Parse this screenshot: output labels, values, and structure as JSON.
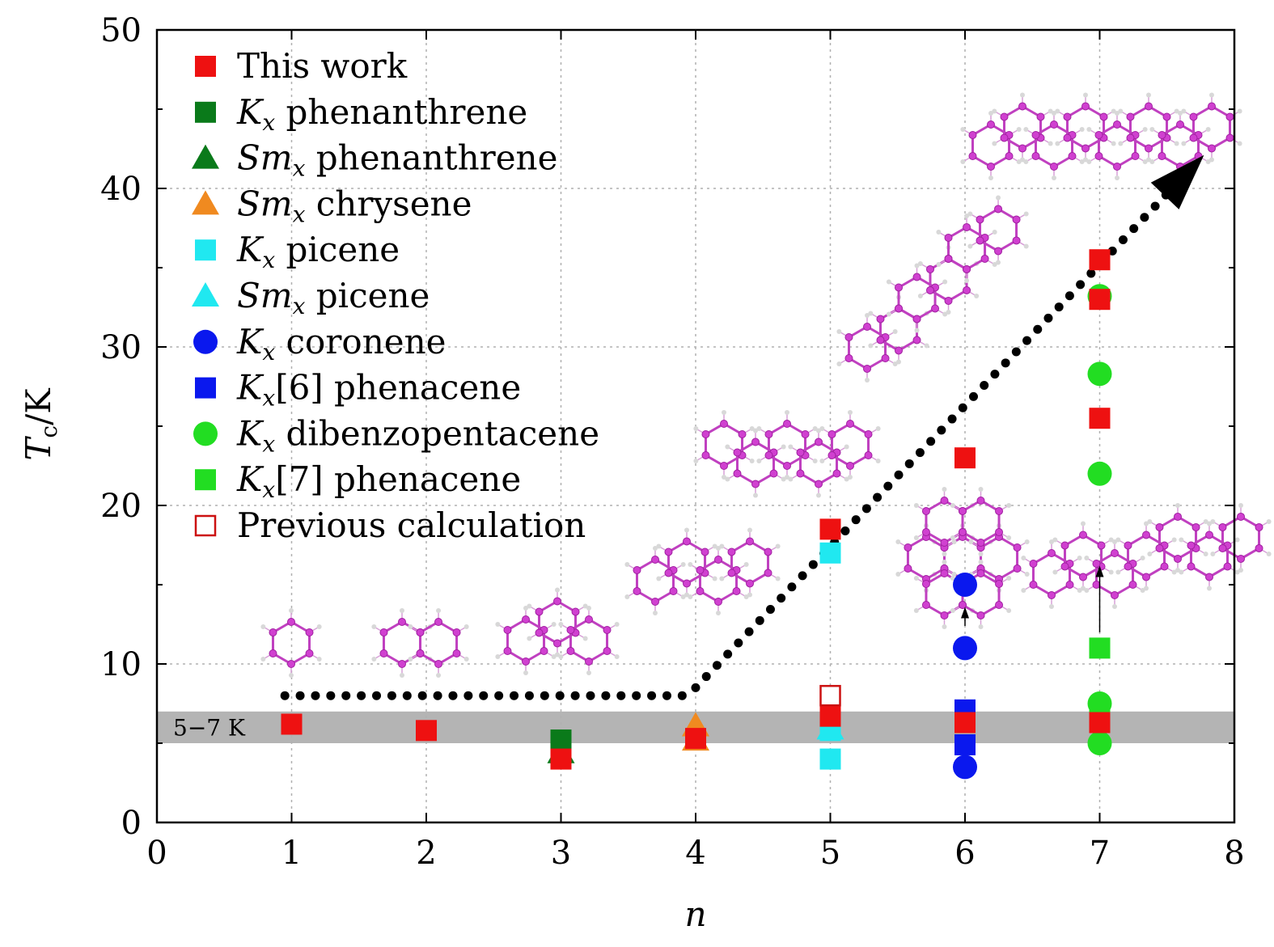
{
  "chart_data": {
    "type": "scatter",
    "xlabel": "n",
    "ylabel": "Tc/K",
    "xlim": [
      0,
      8
    ],
    "ylim": [
      0,
      50
    ],
    "x_ticks": [
      "0",
      "1",
      "2",
      "3",
      "4",
      "5",
      "6",
      "7",
      "8"
    ],
    "y_ticks": [
      "0",
      "10",
      "20",
      "30",
      "40",
      "50"
    ],
    "grid": true,
    "legend_position": "top-left",
    "band": {
      "from": 5,
      "to": 7,
      "label": "5−7 K",
      "color": "#b4b4b4"
    },
    "series": [
      {
        "name": "This work",
        "marker": "square",
        "color": "#ee1111",
        "points": [
          [
            1,
            6.2
          ],
          [
            2,
            5.8
          ],
          [
            3,
            4
          ],
          [
            4,
            5.3
          ],
          [
            5,
            18.5
          ],
          [
            5,
            6.7
          ],
          [
            6,
            23
          ],
          [
            6,
            6.3
          ],
          [
            7,
            35.5
          ],
          [
            7,
            33
          ],
          [
            7,
            25.5
          ],
          [
            7,
            6.3
          ]
        ]
      },
      {
        "name": "Kx phenanthrene",
        "marker": "square",
        "color": "#0a7a1a",
        "points": [
          [
            3,
            5.2
          ]
        ]
      },
      {
        "name": "Smx phenanthrene",
        "marker": "triangle",
        "color": "#0a7a1a",
        "points": [
          [
            3,
            4.4
          ]
        ]
      },
      {
        "name": "Smx chrysene",
        "marker": "triangle",
        "color": "#f08a20",
        "points": [
          [
            4,
            6.1
          ],
          [
            4,
            5.2
          ]
        ]
      },
      {
        "name": "Kx picene",
        "marker": "square",
        "color": "#20e8f0",
        "points": [
          [
            5,
            17
          ],
          [
            5,
            6.4
          ],
          [
            5,
            5.8
          ],
          [
            5,
            4
          ]
        ]
      },
      {
        "name": "Smx picene",
        "marker": "triangle",
        "color": "#20e8f0",
        "points": [
          [
            5,
            5.9
          ]
        ]
      },
      {
        "name": "Kx coronene",
        "marker": "circle",
        "color": "#0a18ee",
        "points": [
          [
            6,
            15
          ],
          [
            6,
            11
          ],
          [
            6,
            3.5
          ]
        ]
      },
      {
        "name": "Kx[6] phenacene",
        "marker": "square",
        "color": "#0a18ee",
        "points": [
          [
            6,
            7.1
          ],
          [
            6,
            4.9
          ]
        ]
      },
      {
        "name": "Kx dibenzopentacene",
        "marker": "circle",
        "color": "#22dd22",
        "points": [
          [
            7,
            33.2
          ],
          [
            7,
            28.3
          ],
          [
            7,
            22
          ],
          [
            7,
            7.5
          ],
          [
            7,
            5
          ]
        ]
      },
      {
        "name": "Kx[7] phenacene",
        "marker": "square",
        "color": "#22dd22",
        "points": [
          [
            7,
            11
          ],
          [
            7,
            6.6
          ]
        ]
      },
      {
        "name": "Previous calculation",
        "marker": "open-square",
        "color": "#cc1111",
        "points": [
          [
            5,
            8
          ]
        ]
      }
    ],
    "trend_line": {
      "style": "dotted",
      "points": [
        [
          0.95,
          8
        ],
        [
          3.9,
          8
        ],
        [
          4,
          8.5
        ],
        [
          7.65,
          41
        ]
      ]
    },
    "arrows": [
      {
        "from": [
          6,
          12.4
        ],
        "to": [
          6,
          13.6
        ]
      },
      {
        "from": [
          7,
          12
        ],
        "to": [
          7,
          16.2
        ]
      }
    ]
  },
  "legend": [
    {
      "prefix": "This work",
      "sub": "",
      "suffix": ""
    },
    {
      "prefix": "K",
      "sub": "x",
      "suffix": " phenanthrene"
    },
    {
      "prefix": "Sm",
      "sub": "x",
      "suffix": " phenanthrene"
    },
    {
      "prefix": "Sm",
      "sub": "x",
      "suffix": " chrysene"
    },
    {
      "prefix": "K",
      "sub": "x",
      "suffix": " picene"
    },
    {
      "prefix": "Sm",
      "sub": "x",
      "suffix": " picene"
    },
    {
      "prefix": "K",
      "sub": "x",
      "suffix": " coronene"
    },
    {
      "prefix": "K",
      "sub": "x",
      "suffix": "[6] phenacene"
    },
    {
      "prefix": "K",
      "sub": "x",
      "suffix": " dibenzopentacene"
    },
    {
      "prefix": "K",
      "sub": "x",
      "suffix": "[7] phenacene"
    },
    {
      "prefix": "Previous calculation",
      "sub": "",
      "suffix": ""
    }
  ],
  "axis_titles": {
    "x": "n",
    "y_main": "T",
    "y_sub": "c",
    "y_rest": "/K"
  }
}
